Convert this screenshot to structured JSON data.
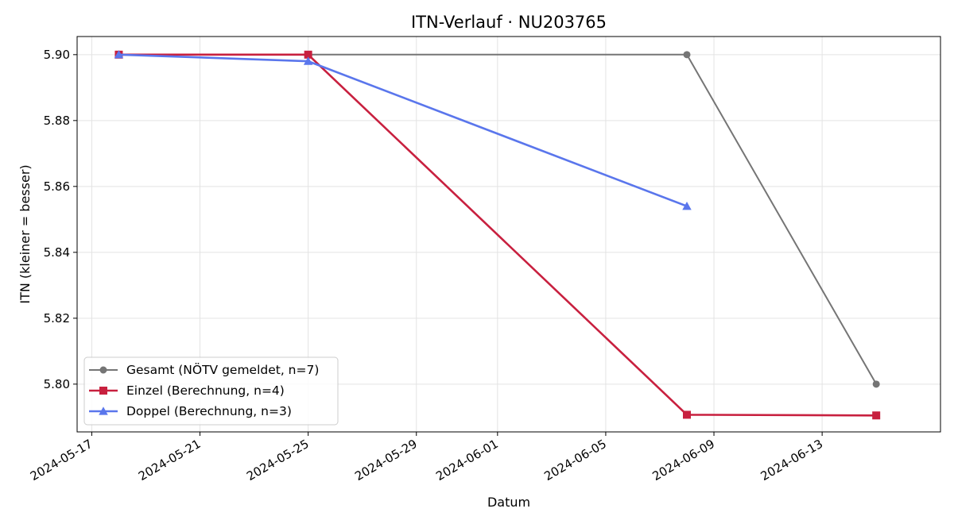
{
  "chart_data": {
    "type": "line",
    "title": "ITN-Verlauf · NU203765",
    "xlabel": "Datum",
    "ylabel": "ITN  (kleiner = besser)",
    "x_type": "date",
    "xlim": [
      "2024-05-16T11:00",
      "2024-06-17T09:00"
    ],
    "ylim": [
      5.7855,
      5.9055
    ],
    "x_ticks": [
      "2024-05-17",
      "2024-05-21",
      "2024-05-25",
      "2024-05-29",
      "2024-06-01",
      "2024-06-05",
      "2024-06-09",
      "2024-06-13"
    ],
    "y_ticks": [
      5.8,
      5.82,
      5.84,
      5.86,
      5.88,
      5.9
    ],
    "y_tick_labels": [
      "5.80",
      "5.82",
      "5.84",
      "5.86",
      "5.88",
      "5.90"
    ],
    "grid": true,
    "legend_position": "lower-left",
    "series": [
      {
        "name": "Gesamt (NÖTV gemeldet, n=7)",
        "color": "#757575",
        "marker": "circle",
        "x": [
          "2024-05-25",
          "2024-06-08",
          "2024-06-15"
        ],
        "y": [
          5.9,
          5.9,
          5.8
        ]
      },
      {
        "name": "Einzel (Berechnung, n=4)",
        "color": "#c8203f",
        "marker": "square",
        "x": [
          "2024-05-18",
          "2024-05-25",
          "2024-06-08",
          "2024-06-15"
        ],
        "y": [
          5.9,
          5.9,
          5.7907,
          5.7905
        ]
      },
      {
        "name": "Doppel (Berechnung, n=3)",
        "color": "#5a76ec",
        "marker": "triangle",
        "x": [
          "2024-05-18",
          "2024-05-25",
          "2024-06-08"
        ],
        "y": [
          5.9,
          5.898,
          5.854
        ]
      }
    ]
  }
}
